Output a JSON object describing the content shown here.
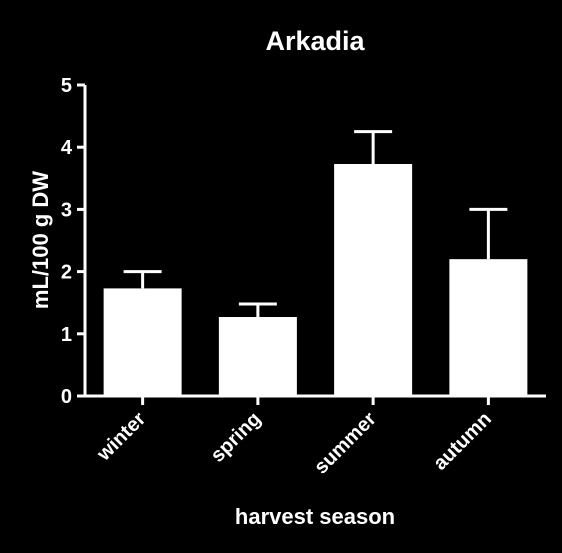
{
  "chart_data": {
    "type": "bar",
    "title": "Arkadia",
    "xlabel": "harvest season",
    "ylabel": "mL/100 g DW",
    "categories": [
      "winter",
      "spring",
      "summer",
      "autumn"
    ],
    "values": [
      1.73,
      1.27,
      3.73,
      2.2
    ],
    "error_upper": [
      2.0,
      1.48,
      4.25,
      3.0
    ],
    "ylim": [
      0,
      5
    ],
    "yticks": [
      "0",
      "1",
      "2",
      "3",
      "4",
      "5"
    ],
    "grid": false,
    "colors": {
      "background": "#000000",
      "bar_fill": "#ffffff",
      "axis": "#ffffff",
      "text": "#ffffff"
    }
  }
}
